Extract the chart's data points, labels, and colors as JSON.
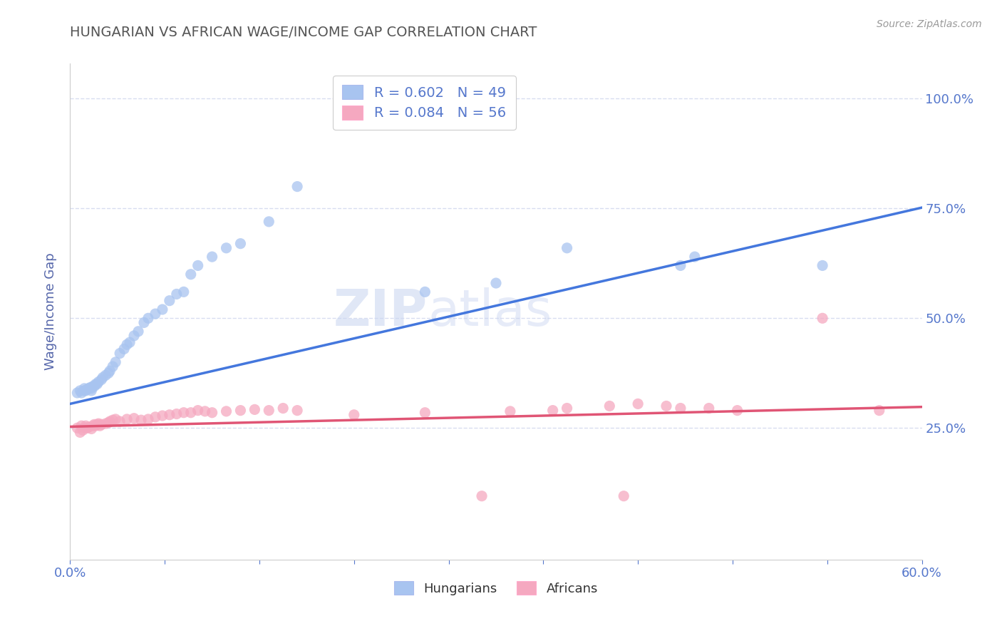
{
  "title": "HUNGARIAN VS AFRICAN WAGE/INCOME GAP CORRELATION CHART",
  "source_text": "Source: ZipAtlas.com",
  "ylabel": "Wage/Income Gap",
  "xlim": [
    0.0,
    0.6
  ],
  "ylim": [
    -0.05,
    1.08
  ],
  "yticks": [
    0.25,
    0.5,
    0.75,
    1.0
  ],
  "ytick_labels": [
    "25.0%",
    "50.0%",
    "75.0%",
    "100.0%"
  ],
  "blue_marker_color": "#a8c4f0",
  "pink_marker_color": "#f5a8c0",
  "blue_line_color": "#4477dd",
  "pink_line_color": "#e05575",
  "legend_R_blue": "R = 0.602",
  "legend_N_blue": "N = 49",
  "legend_R_pink": "R = 0.084",
  "legend_N_pink": "N = 56",
  "watermark_zip": "ZIP",
  "watermark_atlas": "atlas",
  "blue_x": [
    0.005,
    0.007,
    0.008,
    0.01,
    0.01,
    0.011,
    0.012,
    0.013,
    0.014,
    0.015,
    0.015,
    0.016,
    0.017,
    0.018,
    0.019,
    0.02,
    0.022,
    0.023,
    0.025,
    0.027,
    0.028,
    0.03,
    0.032,
    0.035,
    0.038,
    0.04,
    0.042,
    0.045,
    0.048,
    0.052,
    0.055,
    0.06,
    0.065,
    0.07,
    0.075,
    0.08,
    0.085,
    0.09,
    0.1,
    0.11,
    0.12,
    0.14,
    0.16,
    0.25,
    0.3,
    0.35,
    0.43,
    0.44,
    0.53
  ],
  "blue_y": [
    0.33,
    0.335,
    0.33,
    0.335,
    0.34,
    0.335,
    0.338,
    0.34,
    0.342,
    0.335,
    0.34,
    0.345,
    0.345,
    0.35,
    0.35,
    0.355,
    0.36,
    0.365,
    0.37,
    0.375,
    0.38,
    0.39,
    0.4,
    0.42,
    0.43,
    0.44,
    0.445,
    0.46,
    0.47,
    0.49,
    0.5,
    0.51,
    0.52,
    0.54,
    0.555,
    0.56,
    0.6,
    0.62,
    0.64,
    0.66,
    0.67,
    0.72,
    0.8,
    0.56,
    0.58,
    0.66,
    0.62,
    0.64,
    0.62
  ],
  "pink_x": [
    0.005,
    0.007,
    0.008,
    0.009,
    0.01,
    0.011,
    0.012,
    0.013,
    0.015,
    0.016,
    0.017,
    0.018,
    0.019,
    0.02,
    0.021,
    0.022,
    0.025,
    0.027,
    0.028,
    0.03,
    0.032,
    0.035,
    0.04,
    0.045,
    0.05,
    0.055,
    0.06,
    0.065,
    0.07,
    0.075,
    0.08,
    0.085,
    0.09,
    0.095,
    0.1,
    0.11,
    0.12,
    0.13,
    0.14,
    0.15,
    0.16,
    0.2,
    0.25,
    0.29,
    0.31,
    0.34,
    0.35,
    0.38,
    0.39,
    0.4,
    0.42,
    0.43,
    0.45,
    0.47,
    0.53,
    0.57
  ],
  "pink_y": [
    0.25,
    0.24,
    0.255,
    0.245,
    0.25,
    0.255,
    0.25,
    0.252,
    0.248,
    0.255,
    0.258,
    0.255,
    0.258,
    0.26,
    0.255,
    0.258,
    0.26,
    0.262,
    0.265,
    0.268,
    0.27,
    0.265,
    0.27,
    0.272,
    0.268,
    0.27,
    0.275,
    0.278,
    0.28,
    0.282,
    0.285,
    0.285,
    0.29,
    0.288,
    0.285,
    0.288,
    0.29,
    0.292,
    0.29,
    0.295,
    0.29,
    0.28,
    0.285,
    0.095,
    0.288,
    0.29,
    0.295,
    0.3,
    0.095,
    0.305,
    0.3,
    0.295,
    0.295,
    0.29,
    0.5,
    0.29
  ],
  "blue_trend_x": [
    0.0,
    0.6
  ],
  "blue_trend_y": [
    0.305,
    0.752
  ],
  "pink_trend_x": [
    0.0,
    0.6
  ],
  "pink_trend_y": [
    0.253,
    0.298
  ],
  "title_color": "#555555",
  "axis_label_color": "#5566aa",
  "tick_color": "#5577cc",
  "grid_color": "#d8ddf0",
  "background_color": "#ffffff"
}
